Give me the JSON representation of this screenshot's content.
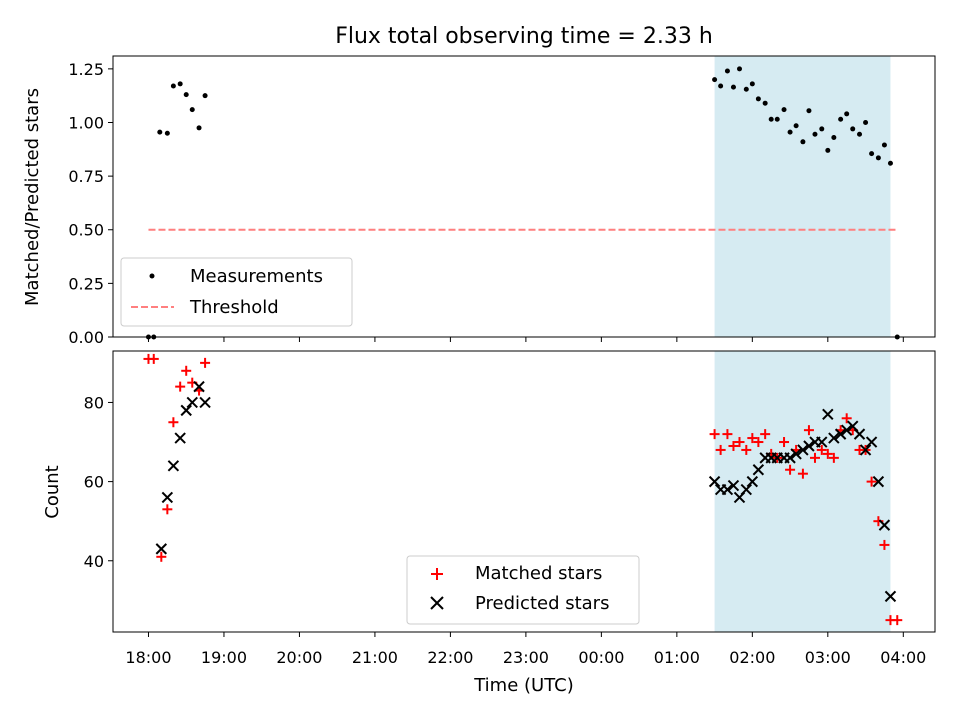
{
  "title": "Flux total observing time = 2.33 h",
  "xlabel": "Time (UTC)",
  "x_tick_labels": [
    "18:00",
    "19:00",
    "20:00",
    "21:00",
    "22:00",
    "23:00",
    "00:00",
    "01:00",
    "02:00",
    "03:00",
    "04:00"
  ],
  "colors": {
    "measurements": "#000000",
    "threshold": "#ff7f7f",
    "matched": "#ff0000",
    "predicted": "#000000",
    "highlight": "#add8e6"
  },
  "chart_data": [
    {
      "type": "scatter",
      "ylabel": "Matched/Predicted stars",
      "x_unit": "hours since 18:00 UTC",
      "xlim": [
        -0.47,
        10.42
      ],
      "ylim": [
        0.0,
        1.31
      ],
      "yticks": [
        0.0,
        0.25,
        0.5,
        0.75,
        1.0,
        1.25
      ],
      "ytick_labels": [
        "0.00",
        "0.25",
        "0.50",
        "0.75",
        "1.00",
        "1.25"
      ],
      "highlight_span": [
        7.5,
        9.83
      ],
      "legend": {
        "placement": "lower-left",
        "entries": [
          "Measurements",
          "Threshold"
        ]
      },
      "threshold": {
        "name": "Threshold",
        "y": 0.5,
        "x_range": [
          0.0,
          9.92
        ]
      },
      "series": [
        {
          "name": "Measurements",
          "marker": "dot",
          "points": [
            [
              0.0,
              0.0
            ],
            [
              0.07,
              0.0
            ],
            [
              0.15,
              0.955
            ],
            [
              0.25,
              0.95
            ],
            [
              0.33,
              1.17
            ],
            [
              0.42,
              1.18
            ],
            [
              0.5,
              1.13
            ],
            [
              0.58,
              1.06
            ],
            [
              0.67,
              0.975
            ],
            [
              0.75,
              1.125
            ],
            [
              7.5,
              1.2
            ],
            [
              7.58,
              1.17
            ],
            [
              7.67,
              1.24
            ],
            [
              7.75,
              1.165
            ],
            [
              7.83,
              1.25
            ],
            [
              7.92,
              1.155
            ],
            [
              8.0,
              1.18
            ],
            [
              8.08,
              1.11
            ],
            [
              8.17,
              1.09
            ],
            [
              8.25,
              1.015
            ],
            [
              8.33,
              1.015
            ],
            [
              8.42,
              1.06
            ],
            [
              8.5,
              0.955
            ],
            [
              8.58,
              0.985
            ],
            [
              8.67,
              0.91
            ],
            [
              8.75,
              1.055
            ],
            [
              8.83,
              0.945
            ],
            [
              8.92,
              0.97
            ],
            [
              9.0,
              0.87
            ],
            [
              9.08,
              0.93
            ],
            [
              9.17,
              1.015
            ],
            [
              9.25,
              1.04
            ],
            [
              9.33,
              0.97
            ],
            [
              9.42,
              0.945
            ],
            [
              9.5,
              1.0
            ],
            [
              9.58,
              0.855
            ],
            [
              9.67,
              0.835
            ],
            [
              9.75,
              0.895
            ],
            [
              9.83,
              0.81
            ],
            [
              9.92,
              0.0
            ]
          ]
        }
      ]
    },
    {
      "type": "scatter",
      "ylabel": "Count",
      "x_unit": "hours since 18:00 UTC",
      "xlim": [
        -0.47,
        10.42
      ],
      "ylim": [
        22,
        93
      ],
      "yticks": [
        40,
        60,
        80
      ],
      "ytick_labels": [
        "40",
        "60",
        "80"
      ],
      "highlight_span": [
        7.5,
        9.83
      ],
      "legend": {
        "placement": "lower-center",
        "entries": [
          "Matched stars",
          "Predicted stars"
        ]
      },
      "series": [
        {
          "name": "Matched stars",
          "marker": "plus",
          "points": [
            [
              0.0,
              91
            ],
            [
              0.07,
              91
            ],
            [
              0.17,
              41
            ],
            [
              0.25,
              53
            ],
            [
              0.33,
              75
            ],
            [
              0.42,
              84
            ],
            [
              0.5,
              88
            ],
            [
              0.58,
              85
            ],
            [
              0.67,
              83
            ],
            [
              0.75,
              90
            ],
            [
              7.5,
              72
            ],
            [
              7.58,
              68
            ],
            [
              7.67,
              72
            ],
            [
              7.75,
              69
            ],
            [
              7.83,
              70
            ],
            [
              7.92,
              68
            ],
            [
              8.0,
              71
            ],
            [
              8.08,
              70
            ],
            [
              8.17,
              72
            ],
            [
              8.25,
              67
            ],
            [
              8.33,
              66
            ],
            [
              8.42,
              70
            ],
            [
              8.5,
              63
            ],
            [
              8.58,
              68
            ],
            [
              8.67,
              62
            ],
            [
              8.75,
              73
            ],
            [
              8.83,
              66
            ],
            [
              8.92,
              68
            ],
            [
              9.0,
              67
            ],
            [
              9.08,
              66
            ],
            [
              9.17,
              73
            ],
            [
              9.25,
              76
            ],
            [
              9.33,
              73
            ],
            [
              9.42,
              68
            ],
            [
              9.5,
              68
            ],
            [
              9.58,
              60
            ],
            [
              9.67,
              50
            ],
            [
              9.75,
              44
            ],
            [
              9.83,
              25
            ],
            [
              9.92,
              25
            ]
          ]
        },
        {
          "name": "Predicted stars",
          "marker": "x",
          "points": [
            [
              0.17,
              43
            ],
            [
              0.25,
              56
            ],
            [
              0.33,
              64
            ],
            [
              0.42,
              71
            ],
            [
              0.5,
              78
            ],
            [
              0.58,
              80
            ],
            [
              0.67,
              84
            ],
            [
              0.75,
              80
            ],
            [
              7.5,
              60
            ],
            [
              7.58,
              58
            ],
            [
              7.67,
              58
            ],
            [
              7.75,
              59
            ],
            [
              7.83,
              56
            ],
            [
              7.92,
              58
            ],
            [
              8.0,
              60
            ],
            [
              8.08,
              63
            ],
            [
              8.17,
              66
            ],
            [
              8.25,
              66
            ],
            [
              8.33,
              66
            ],
            [
              8.42,
              66
            ],
            [
              8.5,
              66
            ],
            [
              8.58,
              67
            ],
            [
              8.67,
              68
            ],
            [
              8.75,
              69
            ],
            [
              8.83,
              70
            ],
            [
              8.92,
              70
            ],
            [
              9.0,
              77
            ],
            [
              9.08,
              71
            ],
            [
              9.17,
              72
            ],
            [
              9.25,
              73
            ],
            [
              9.33,
              74
            ],
            [
              9.42,
              72
            ],
            [
              9.5,
              68
            ],
            [
              9.58,
              70
            ],
            [
              9.67,
              60
            ],
            [
              9.75,
              49
            ],
            [
              9.83,
              31
            ]
          ]
        }
      ]
    }
  ]
}
